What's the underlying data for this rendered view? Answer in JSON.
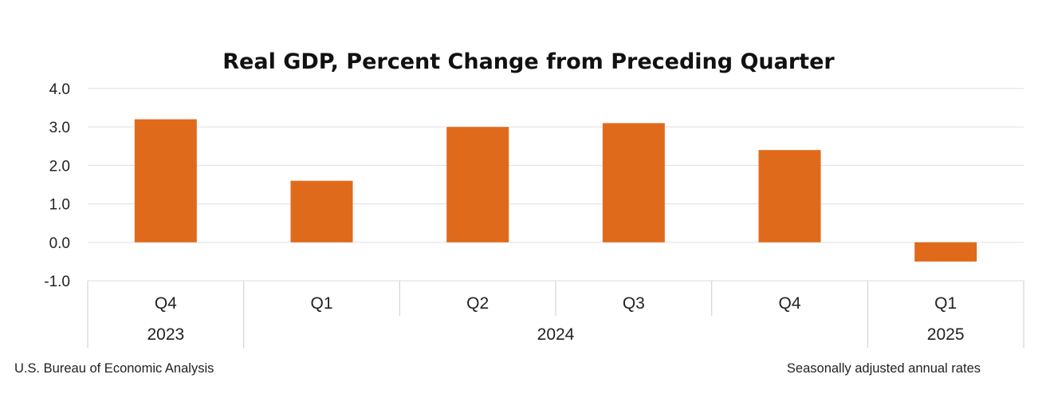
{
  "colors": {
    "bar": "#E06A1B",
    "gridline": "#e3e3e3",
    "axis_divider": "#d4d4d4"
  },
  "chart_data": {
    "type": "bar",
    "title": "Real GDP, Percent Change from Preceding Quarter",
    "categories": [
      "Q4",
      "Q1",
      "Q2",
      "Q3",
      "Q4",
      "Q1"
    ],
    "values": [
      3.2,
      1.6,
      3.0,
      3.1,
      2.4,
      -0.5
    ],
    "year_groups": [
      {
        "label": "2023",
        "span": 1
      },
      {
        "label": "2024",
        "span": 4
      },
      {
        "label": "2025",
        "span": 1
      }
    ],
    "ylim": [
      -1.0,
      4.0
    ],
    "y_ticks": [
      "4.0",
      "3.0",
      "2.0",
      "1.0",
      "0.0",
      "-1.0"
    ],
    "grid": true,
    "source_note": "U.S. Bureau of Economic Analysis",
    "rate_note": "Seasonally adjusted annual rates"
  }
}
